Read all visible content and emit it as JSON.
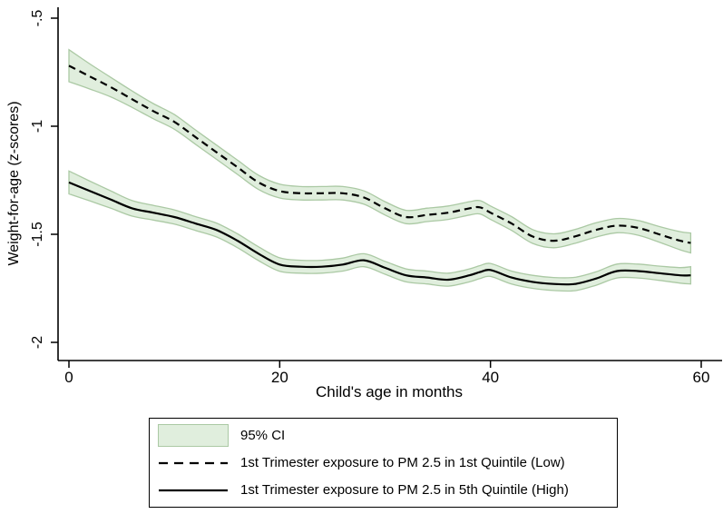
{
  "figure": {
    "y_axis": {
      "title": "Weight-for-age (z-scores)",
      "ticks": [
        {
          "label": "-.5",
          "value": -0.5
        },
        {
          "label": "-1",
          "value": -1
        },
        {
          "label": "-1.5",
          "value": -1.5
        },
        {
          "label": "-2",
          "value": -2
        }
      ]
    },
    "x_axis": {
      "title": "Child's age in months",
      "ticks": [
        {
          "label": "0",
          "value": 0
        },
        {
          "label": "20",
          "value": 20
        },
        {
          "label": "40",
          "value": 40
        },
        {
          "label": "60",
          "value": 60
        }
      ]
    },
    "colors": {
      "ci_fill": "#e0eedd",
      "ci_edge": "#abc9a4",
      "line": "#000000",
      "axis": "#000000"
    }
  },
  "legend": {
    "items": [
      {
        "type": "area",
        "label": "95% CI"
      },
      {
        "type": "dashed",
        "label": "1st Trimester exposure to PM 2.5 in 1st Quintile (Low)"
      },
      {
        "type": "solid",
        "label": "1st Trimester exposure to PM 2.5 in 5th Quintile (High)"
      }
    ]
  },
  "chart_data": {
    "type": "line",
    "title": "",
    "xlabel": "Child's age in months",
    "ylabel": "Weight-for-age (z-scores)",
    "xlim": [
      0,
      60
    ],
    "ylim": [
      -2,
      -0.5
    ],
    "x_ticks": [
      0,
      20,
      40,
      60
    ],
    "y_ticks": [
      -0.5,
      -1,
      -1.5,
      -2
    ],
    "grid": false,
    "legend_position": "below",
    "ci_level": "95% CI",
    "x": [
      0,
      2,
      4,
      6,
      8,
      10,
      12,
      14,
      16,
      18,
      20,
      22,
      24,
      26,
      28,
      30,
      32,
      34,
      36,
      38,
      39,
      40,
      42,
      44,
      46,
      48,
      50,
      52,
      54,
      56,
      58,
      59
    ],
    "series": [
      {
        "name": "1st Trimester exposure to PM 2.5 in 1st Quintile (Low)",
        "style": "dashed",
        "values": [
          -0.72,
          -0.77,
          -0.82,
          -0.875,
          -0.93,
          -0.98,
          -1.05,
          -1.12,
          -1.19,
          -1.26,
          -1.3,
          -1.31,
          -1.31,
          -1.31,
          -1.33,
          -1.38,
          -1.42,
          -1.41,
          -1.4,
          -1.38,
          -1.375,
          -1.4,
          -1.45,
          -1.51,
          -1.53,
          -1.51,
          -1.48,
          -1.46,
          -1.47,
          -1.5,
          -1.53,
          -1.54
        ],
        "ci_halfwidth": [
          0.074,
          0.058,
          0.045,
          0.038,
          0.035,
          0.034,
          0.033,
          0.033,
          0.033,
          0.033,
          0.032,
          0.031,
          0.031,
          0.031,
          0.031,
          0.031,
          0.031,
          0.031,
          0.031,
          0.031,
          0.031,
          0.031,
          0.032,
          0.032,
          0.032,
          0.032,
          0.033,
          0.033,
          0.034,
          0.036,
          0.042,
          0.046
        ]
      },
      {
        "name": "1st Trimester exposure to PM 2.5 in 5th Quintile (High)",
        "style": "solid",
        "values": [
          -1.26,
          -1.3,
          -1.34,
          -1.38,
          -1.4,
          -1.42,
          -1.45,
          -1.48,
          -1.53,
          -1.59,
          -1.64,
          -1.65,
          -1.65,
          -1.64,
          -1.62,
          -1.655,
          -1.69,
          -1.7,
          -1.71,
          -1.69,
          -1.675,
          -1.665,
          -1.7,
          -1.72,
          -1.73,
          -1.73,
          -1.705,
          -1.67,
          -1.67,
          -1.68,
          -1.69,
          -1.69
        ],
        "ci_halfwidth": [
          0.053,
          0.046,
          0.04,
          0.036,
          0.034,
          0.033,
          0.032,
          0.032,
          0.032,
          0.032,
          0.031,
          0.03,
          0.03,
          0.03,
          0.03,
          0.03,
          0.03,
          0.03,
          0.03,
          0.03,
          0.03,
          0.03,
          0.03,
          0.03,
          0.03,
          0.031,
          0.031,
          0.032,
          0.032,
          0.033,
          0.036,
          0.04
        ]
      }
    ]
  }
}
